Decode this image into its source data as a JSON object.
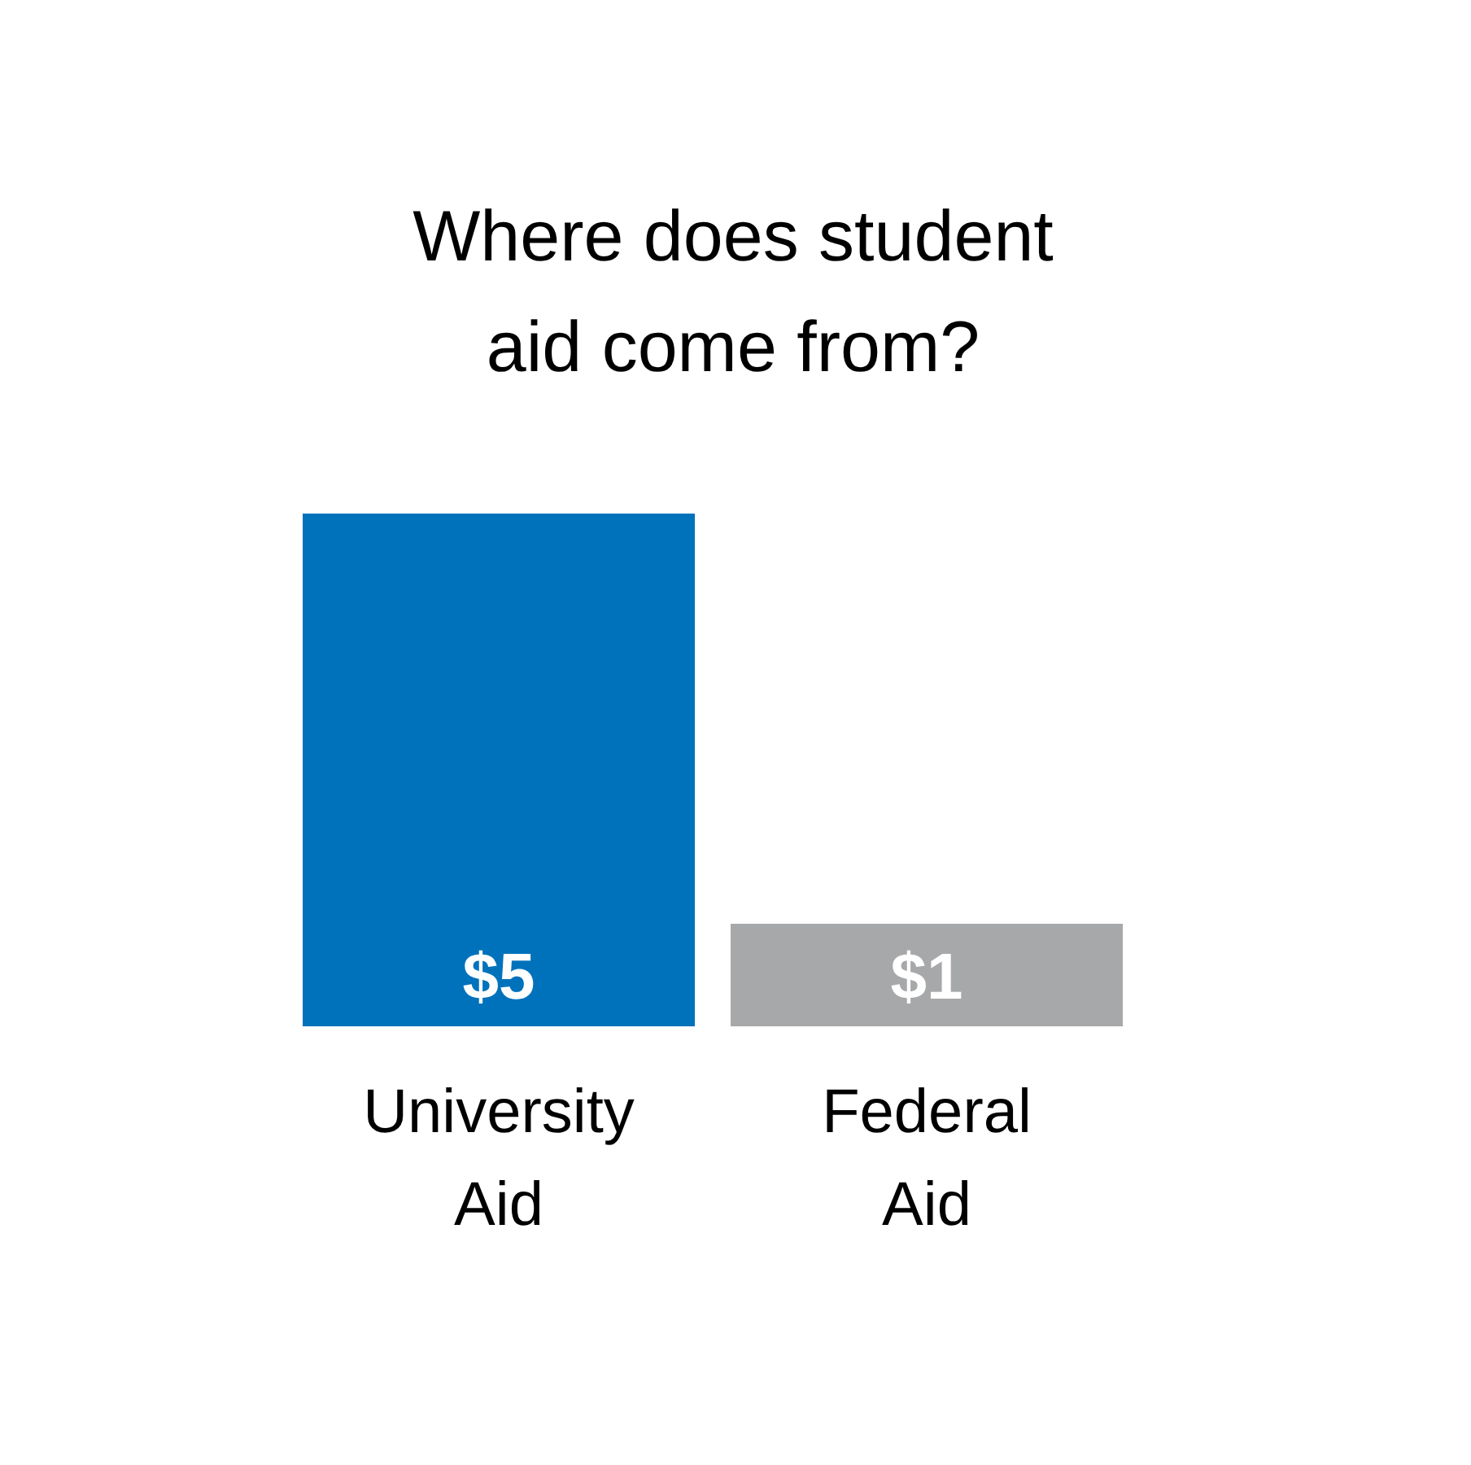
{
  "chart_data": {
    "type": "bar",
    "title": "Where does student aid come from?",
    "categories": [
      "University Aid",
      "Federal Aid"
    ],
    "values": [
      5,
      1
    ],
    "colors": [
      "#0072bb",
      "#a7a8aa"
    ],
    "value_labels": [
      "$5",
      "$1"
    ]
  }
}
